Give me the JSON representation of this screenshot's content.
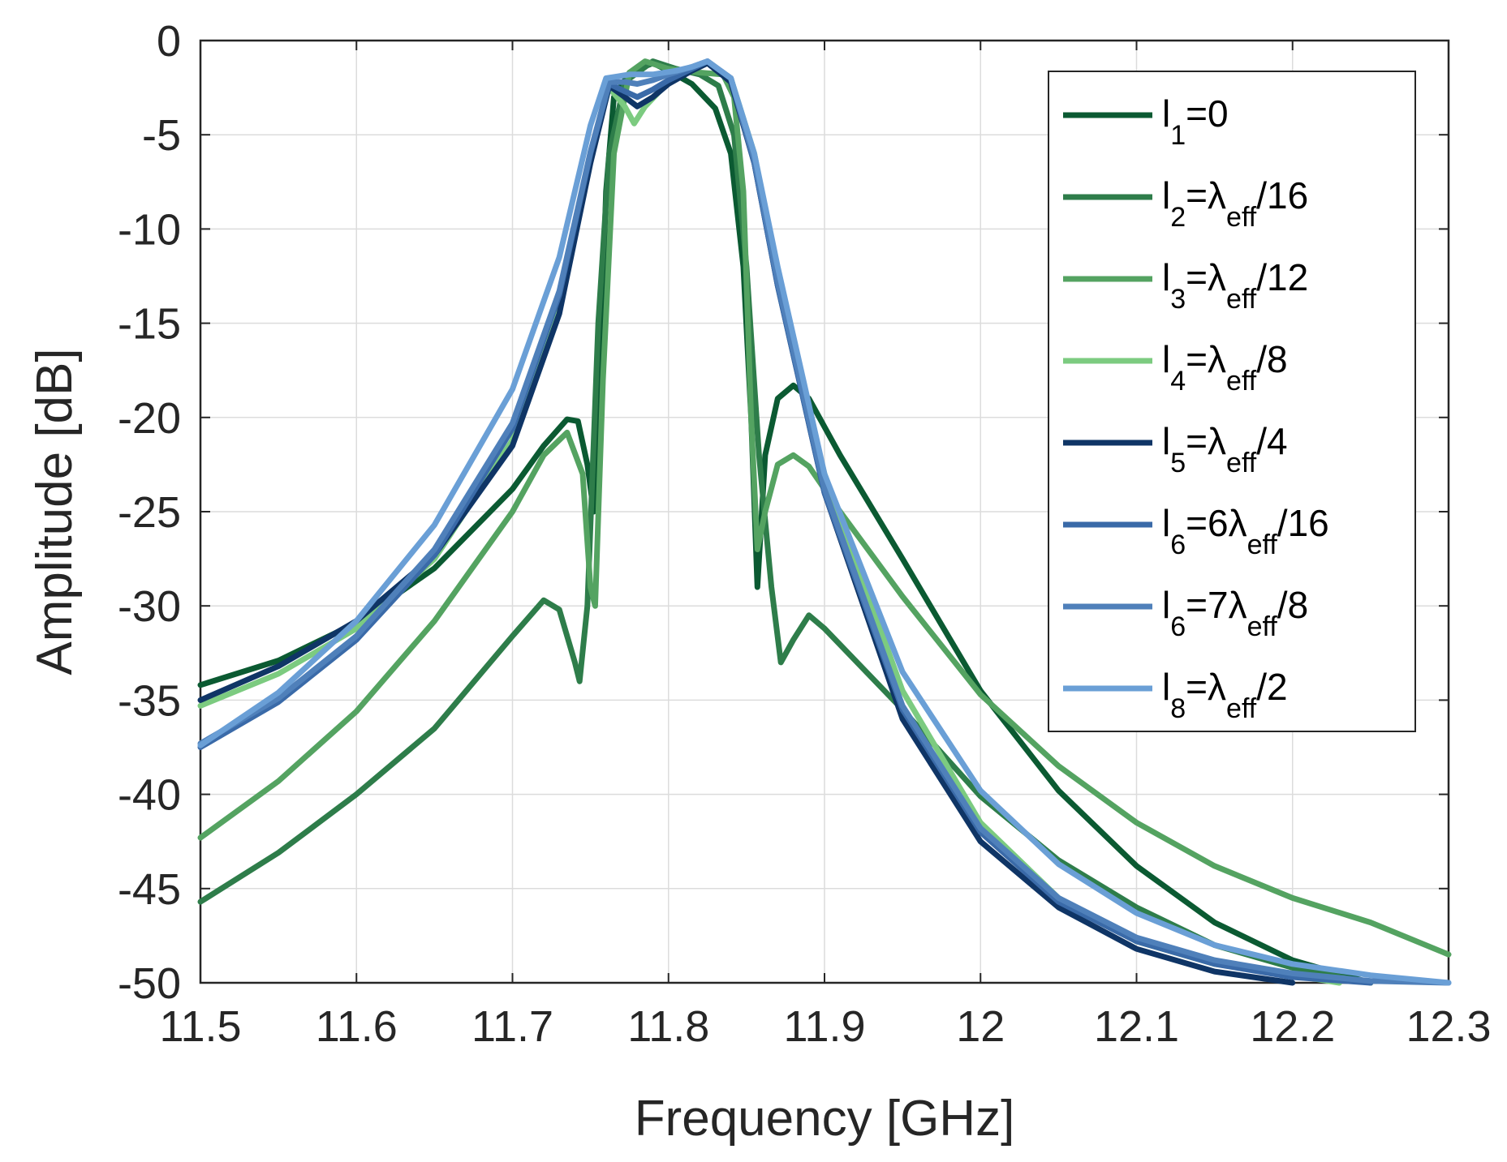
{
  "chart_data": {
    "type": "line",
    "title": "",
    "xlabel": "Frequency [GHz]",
    "ylabel": "Amplitude [dB]",
    "xlim": [
      11.5,
      12.3
    ],
    "ylim": [
      -50,
      0
    ],
    "xticks": [
      11.5,
      11.6,
      11.7,
      11.8,
      11.9,
      12,
      12.1,
      12.2,
      12.3
    ],
    "xtick_labels": [
      "11.5",
      "11.6",
      "11.7",
      "11.8",
      "11.9",
      "12",
      "12.1",
      "12.2",
      "12.3"
    ],
    "yticks": [
      0,
      -5,
      -10,
      -15,
      -20,
      -25,
      -30,
      -35,
      -40,
      -45,
      -50
    ],
    "ytick_labels": [
      "0",
      "-5",
      "-10",
      "-15",
      "-20",
      "-25",
      "-30",
      "-35",
      "-40",
      "-45",
      "-50"
    ],
    "grid": true,
    "legend_position": "top-right",
    "series": [
      {
        "name": "l1=0",
        "legend": {
          "base": "l",
          "sub": "1",
          "text": "=0",
          "lambda": "",
          "lambda_sub": "",
          "tail": ""
        },
        "color": "#0b5a32",
        "points": [
          [
            11.5,
            -34.2
          ],
          [
            11.55,
            -32.9
          ],
          [
            11.6,
            -30.9
          ],
          [
            11.65,
            -28.0
          ],
          [
            11.7,
            -23.8
          ],
          [
            11.72,
            -21.5
          ],
          [
            11.735,
            -20.1
          ],
          [
            11.742,
            -20.2
          ],
          [
            11.748,
            -22.5
          ],
          [
            11.752,
            -25.0
          ],
          [
            11.756,
            -18.0
          ],
          [
            11.76,
            -8.0
          ],
          [
            11.765,
            -3.0
          ],
          [
            11.775,
            -1.7
          ],
          [
            11.79,
            -1.2
          ],
          [
            11.8,
            -1.6
          ],
          [
            11.815,
            -2.3
          ],
          [
            11.83,
            -3.6
          ],
          [
            11.84,
            -6.0
          ],
          [
            11.848,
            -12.0
          ],
          [
            11.853,
            -20.0
          ],
          [
            11.857,
            -29.0
          ],
          [
            11.862,
            -22.0
          ],
          [
            11.87,
            -19.0
          ],
          [
            11.88,
            -18.3
          ],
          [
            11.89,
            -19.0
          ],
          [
            11.91,
            -22.0
          ],
          [
            11.95,
            -27.5
          ],
          [
            12.0,
            -34.5
          ],
          [
            12.05,
            -39.8
          ],
          [
            12.1,
            -43.8
          ],
          [
            12.15,
            -46.8
          ],
          [
            12.2,
            -48.8
          ],
          [
            12.25,
            -50.0
          ]
        ]
      },
      {
        "name": "l2=λeff/16",
        "legend": {
          "base": "l",
          "sub": "2",
          "text": "=",
          "lambda": "λ",
          "lambda_sub": "eff",
          "tail": "/16"
        },
        "color": "#2e7d4a",
        "points": [
          [
            11.5,
            -45.7
          ],
          [
            11.55,
            -43.1
          ],
          [
            11.6,
            -40.0
          ],
          [
            11.65,
            -36.5
          ],
          [
            11.7,
            -31.6
          ],
          [
            11.72,
            -29.7
          ],
          [
            11.73,
            -30.2
          ],
          [
            11.74,
            -33.0
          ],
          [
            11.743,
            -34.0
          ],
          [
            11.748,
            -30.0
          ],
          [
            11.755,
            -15.0
          ],
          [
            11.762,
            -6.0
          ],
          [
            11.772,
            -2.2
          ],
          [
            11.79,
            -1.1
          ],
          [
            11.805,
            -1.5
          ],
          [
            11.82,
            -1.8
          ],
          [
            11.832,
            -2.4
          ],
          [
            11.842,
            -5.0
          ],
          [
            11.85,
            -12.0
          ],
          [
            11.858,
            -22.0
          ],
          [
            11.866,
            -29.0
          ],
          [
            11.872,
            -33.0
          ],
          [
            11.88,
            -31.8
          ],
          [
            11.89,
            -30.5
          ],
          [
            11.9,
            -31.2
          ],
          [
            11.95,
            -35.5
          ],
          [
            12.0,
            -40.1
          ],
          [
            12.05,
            -43.5
          ],
          [
            12.1,
            -46.0
          ],
          [
            12.15,
            -48.0
          ],
          [
            12.2,
            -49.2
          ],
          [
            12.25,
            -50.0
          ]
        ]
      },
      {
        "name": "l3=λeff/12",
        "legend": {
          "base": "l",
          "sub": "3",
          "text": "=",
          "lambda": "λ",
          "lambda_sub": "eff",
          "tail": "/12"
        },
        "color": "#54a361",
        "points": [
          [
            11.5,
            -42.3
          ],
          [
            11.55,
            -39.3
          ],
          [
            11.6,
            -35.6
          ],
          [
            11.65,
            -30.8
          ],
          [
            11.7,
            -25.0
          ],
          [
            11.72,
            -22.0
          ],
          [
            11.735,
            -20.8
          ],
          [
            11.745,
            -23.0
          ],
          [
            11.75,
            -29.0
          ],
          [
            11.753,
            -30.0
          ],
          [
            11.758,
            -18.0
          ],
          [
            11.765,
            -6.0
          ],
          [
            11.775,
            -1.7
          ],
          [
            11.785,
            -1.1
          ],
          [
            11.8,
            -1.5
          ],
          [
            11.82,
            -1.7
          ],
          [
            11.835,
            -1.8
          ],
          [
            11.842,
            -3.0
          ],
          [
            11.848,
            -8.0
          ],
          [
            11.853,
            -20.0
          ],
          [
            11.857,
            -27.0
          ],
          [
            11.862,
            -25.0
          ],
          [
            11.87,
            -22.5
          ],
          [
            11.88,
            -22.0
          ],
          [
            11.89,
            -22.6
          ],
          [
            11.91,
            -25.0
          ],
          [
            11.95,
            -29.5
          ],
          [
            12.0,
            -34.7
          ],
          [
            12.05,
            -38.5
          ],
          [
            12.1,
            -41.5
          ],
          [
            12.15,
            -43.8
          ],
          [
            12.2,
            -45.5
          ],
          [
            12.25,
            -46.8
          ],
          [
            12.3,
            -48.5
          ]
        ]
      },
      {
        "name": "l4=λeff/8",
        "legend": {
          "base": "l",
          "sub": "4",
          "text": "=",
          "lambda": "λ",
          "lambda_sub": "eff",
          "tail": "/8"
        },
        "color": "#7ccb80",
        "points": [
          [
            11.5,
            -35.3
          ],
          [
            11.55,
            -33.6
          ],
          [
            11.6,
            -31.2
          ],
          [
            11.65,
            -27.5
          ],
          [
            11.7,
            -21.2
          ],
          [
            11.73,
            -14.0
          ],
          [
            11.75,
            -6.0
          ],
          [
            11.762,
            -2.5
          ],
          [
            11.772,
            -3.5
          ],
          [
            11.778,
            -4.4
          ],
          [
            11.785,
            -3.5
          ],
          [
            11.8,
            -2.2
          ],
          [
            11.815,
            -1.5
          ],
          [
            11.825,
            -1.2
          ],
          [
            11.84,
            -2.0
          ],
          [
            11.855,
            -6.0
          ],
          [
            11.87,
            -12.5
          ],
          [
            11.885,
            -18.0
          ],
          [
            11.9,
            -23.0
          ],
          [
            11.95,
            -34.5
          ],
          [
            12.0,
            -41.5
          ],
          [
            12.05,
            -45.5
          ],
          [
            12.1,
            -47.8
          ],
          [
            12.15,
            -49.0
          ],
          [
            12.2,
            -49.6
          ],
          [
            12.23,
            -50.0
          ]
        ]
      },
      {
        "name": "l5=λeff/4",
        "legend": {
          "base": "l",
          "sub": "5",
          "text": "=",
          "lambda": "λ",
          "lambda_sub": "eff",
          "tail": "/4"
        },
        "color": "#0f3566",
        "points": [
          [
            11.5,
            -35.0
          ],
          [
            11.55,
            -33.2
          ],
          [
            11.6,
            -30.8
          ],
          [
            11.65,
            -27.3
          ],
          [
            11.7,
            -21.5
          ],
          [
            11.73,
            -14.5
          ],
          [
            11.75,
            -6.5
          ],
          [
            11.762,
            -2.4
          ],
          [
            11.772,
            -3.0
          ],
          [
            11.78,
            -3.5
          ],
          [
            11.79,
            -3.0
          ],
          [
            11.8,
            -2.3
          ],
          [
            11.815,
            -1.6
          ],
          [
            11.825,
            -1.2
          ],
          [
            11.84,
            -2.2
          ],
          [
            11.855,
            -6.5
          ],
          [
            11.87,
            -13.0
          ],
          [
            11.885,
            -18.5
          ],
          [
            11.9,
            -24.0
          ],
          [
            11.95,
            -36.0
          ],
          [
            12.0,
            -42.5
          ],
          [
            12.05,
            -46.0
          ],
          [
            12.1,
            -48.2
          ],
          [
            12.15,
            -49.4
          ],
          [
            12.2,
            -50.0
          ]
        ]
      },
      {
        "name": "l6=6λeff/16",
        "legend": {
          "base": "l",
          "sub": "6",
          "text": "=6",
          "lambda": "λ",
          "lambda_sub": "eff",
          "tail": "/16"
        },
        "color": "#3a6aa8",
        "points": [
          [
            11.5,
            -37.5
          ],
          [
            11.55,
            -35.1
          ],
          [
            11.6,
            -31.8
          ],
          [
            11.65,
            -27.3
          ],
          [
            11.7,
            -20.6
          ],
          [
            11.73,
            -13.5
          ],
          [
            11.75,
            -6.0
          ],
          [
            11.762,
            -2.3
          ],
          [
            11.772,
            -2.7
          ],
          [
            11.78,
            -3.0
          ],
          [
            11.79,
            -2.6
          ],
          [
            11.8,
            -2.1
          ],
          [
            11.815,
            -1.5
          ],
          [
            11.825,
            -1.1
          ],
          [
            11.84,
            -2.0
          ],
          [
            11.855,
            -6.5
          ],
          [
            11.87,
            -13.0
          ],
          [
            11.885,
            -18.5
          ],
          [
            11.9,
            -24.0
          ],
          [
            11.95,
            -35.5
          ],
          [
            12.0,
            -42.0
          ],
          [
            12.05,
            -45.7
          ],
          [
            12.1,
            -47.8
          ],
          [
            12.15,
            -49.0
          ],
          [
            12.2,
            -49.7
          ],
          [
            12.25,
            -50.0
          ]
        ]
      },
      {
        "name": "l6=7λeff/8",
        "legend": {
          "base": "l",
          "sub": "6",
          "text": "=7",
          "lambda": "λ",
          "lambda_sub": "eff",
          "tail": "/8"
        },
        "color": "#4f80ba",
        "points": [
          [
            11.5,
            -37.3
          ],
          [
            11.55,
            -34.9
          ],
          [
            11.6,
            -31.6
          ],
          [
            11.65,
            -27.0
          ],
          [
            11.7,
            -20.3
          ],
          [
            11.73,
            -13.3
          ],
          [
            11.75,
            -5.9
          ],
          [
            11.762,
            -2.2
          ],
          [
            11.772,
            -2.2
          ],
          [
            11.78,
            -2.3
          ],
          [
            11.79,
            -2.1
          ],
          [
            11.8,
            -1.8
          ],
          [
            11.815,
            -1.4
          ],
          [
            11.825,
            -1.1
          ],
          [
            11.84,
            -2.0
          ],
          [
            11.855,
            -6.3
          ],
          [
            11.87,
            -12.8
          ],
          [
            11.885,
            -18.3
          ],
          [
            11.9,
            -23.8
          ],
          [
            11.95,
            -35.3
          ],
          [
            12.0,
            -41.8
          ],
          [
            12.05,
            -45.5
          ],
          [
            12.1,
            -47.6
          ],
          [
            12.15,
            -48.8
          ],
          [
            12.2,
            -49.5
          ],
          [
            12.25,
            -49.9
          ],
          [
            12.3,
            -50.0
          ]
        ]
      },
      {
        "name": "l8=λeff/2",
        "legend": {
          "base": "l",
          "sub": "8",
          "text": "=",
          "lambda": "λ",
          "lambda_sub": "eff",
          "tail": "/2"
        },
        "color": "#6a9fd6",
        "points": [
          [
            11.5,
            -37.4
          ],
          [
            11.55,
            -34.6
          ],
          [
            11.6,
            -30.8
          ],
          [
            11.65,
            -25.7
          ],
          [
            11.7,
            -18.5
          ],
          [
            11.73,
            -11.5
          ],
          [
            11.75,
            -4.5
          ],
          [
            11.76,
            -2.0
          ],
          [
            11.775,
            -1.8
          ],
          [
            11.79,
            -1.8
          ],
          [
            11.805,
            -1.6
          ],
          [
            11.815,
            -1.4
          ],
          [
            11.825,
            -1.1
          ],
          [
            11.84,
            -2.0
          ],
          [
            11.855,
            -6.0
          ],
          [
            11.87,
            -12.0
          ],
          [
            11.885,
            -17.5
          ],
          [
            11.9,
            -23.0
          ],
          [
            11.95,
            -33.5
          ],
          [
            12.0,
            -39.8
          ],
          [
            12.05,
            -43.7
          ],
          [
            12.1,
            -46.3
          ],
          [
            12.15,
            -48.0
          ],
          [
            12.2,
            -49.0
          ],
          [
            12.25,
            -49.6
          ],
          [
            12.3,
            -50.0
          ]
        ]
      }
    ]
  }
}
